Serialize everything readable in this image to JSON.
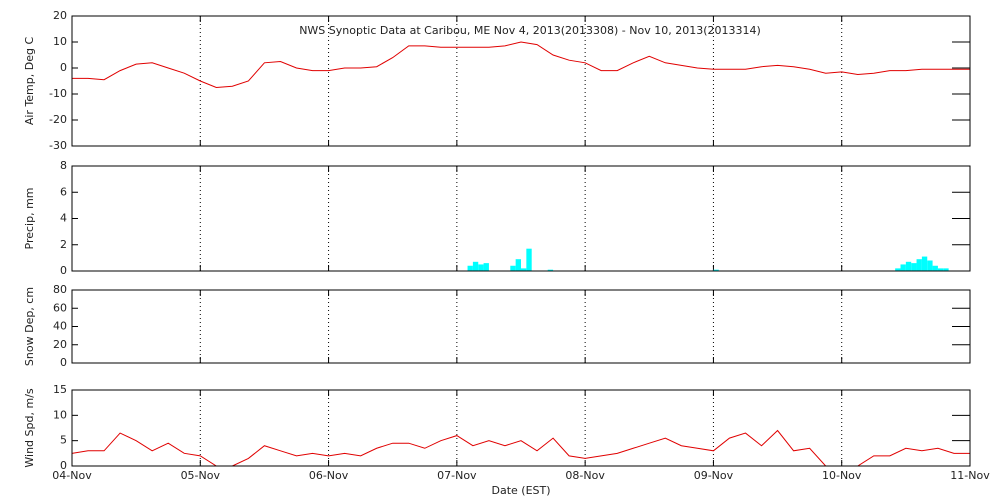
{
  "chart_data": [
    {
      "type": "line",
      "title": "NWS Synoptic Data at Caribou, ME   Nov  4, 2013(2013308) - Nov 10, 2013(2013314)",
      "y_label": "Air Temp, Deg C",
      "color": "#e00000",
      "x": [
        0,
        3,
        6,
        9,
        12,
        15,
        18,
        21,
        24,
        27,
        30,
        33,
        36,
        39,
        42,
        45,
        48,
        51,
        54,
        57,
        60,
        63,
        66,
        69,
        72,
        75,
        78,
        81,
        84,
        87,
        90,
        93,
        96,
        99,
        102,
        105,
        108,
        111,
        114,
        117,
        120,
        123,
        126,
        129,
        132,
        135,
        138,
        141,
        144,
        147,
        150,
        153,
        156,
        159,
        162,
        165,
        168
      ],
      "values": [
        -4,
        -4,
        -4.5,
        -1,
        1.5,
        2,
        0,
        -2,
        -5,
        -7.5,
        -7,
        -5,
        2,
        2.5,
        0,
        -1,
        -1,
        0,
        0,
        0.5,
        4,
        8.5,
        8.5,
        8,
        8,
        8,
        8,
        8.5,
        10,
        9,
        5,
        3,
        2,
        -1,
        -1,
        2,
        4.5,
        2,
        1,
        0,
        -0.5,
        -0.5,
        -0.5,
        0.5,
        1,
        0.5,
        -0.5,
        -2,
        -1.5,
        -2.5,
        -2,
        -1,
        -1,
        -0.5,
        -0.5,
        -0.5,
        -0.5
      ],
      "xlim": [
        0,
        168
      ],
      "xticks": [
        0,
        24,
        48,
        72,
        96,
        120,
        144,
        168
      ],
      "ylim": [
        -30,
        20
      ],
      "yticks": [
        -30,
        -20,
        -10,
        0,
        10,
        20
      ],
      "grid": true
    },
    {
      "type": "bar",
      "y_label": "Precip, mm",
      "color": "#00ffff",
      "x": [
        74,
        75,
        76,
        77,
        82,
        83,
        84,
        85,
        89,
        120,
        154,
        155,
        156,
        157,
        158,
        159,
        160,
        161,
        162,
        163
      ],
      "values": [
        0.4,
        0.7,
        0.5,
        0.6,
        0.4,
        0.9,
        0.2,
        1.7,
        0.1,
        0.1,
        0.2,
        0.5,
        0.7,
        0.6,
        0.9,
        1.1,
        0.8,
        0.4,
        0.2,
        0.2
      ],
      "xlim": [
        0,
        168
      ],
      "xticks": [
        0,
        24,
        48,
        72,
        96,
        120,
        144,
        168
      ],
      "ylim": [
        0,
        8
      ],
      "yticks": [
        0,
        2,
        4,
        6,
        8
      ],
      "grid": true
    },
    {
      "type": "line",
      "y_label": "Snow Dep, cm",
      "color": "#e00000",
      "xlim": [
        0,
        168
      ],
      "xticks": [
        0,
        24,
        48,
        72,
        96,
        120,
        144,
        168
      ],
      "ylim": [
        0,
        80
      ],
      "yticks": [
        0,
        20,
        40,
        60,
        80
      ],
      "grid": true
    },
    {
      "type": "line",
      "y_label": "Wind Spd, m/s",
      "x_label": "Date (EST)",
      "color": "#e00000",
      "x": [
        0,
        3,
        6,
        9,
        12,
        15,
        18,
        21,
        24,
        27,
        30,
        33,
        36,
        39,
        42,
        45,
        48,
        51,
        54,
        57,
        60,
        63,
        66,
        69,
        72,
        75,
        78,
        81,
        84,
        87,
        90,
        93,
        96,
        99,
        102,
        105,
        108,
        111,
        114,
        117,
        120,
        123,
        126,
        129,
        132,
        135,
        138,
        141,
        144,
        147,
        150,
        153,
        156,
        159,
        162,
        165,
        168
      ],
      "values": [
        2.5,
        3,
        3,
        6.5,
        5,
        3,
        4.5,
        2.5,
        2,
        0,
        0,
        1.5,
        4,
        3,
        2,
        2.5,
        2,
        2.5,
        2,
        3.5,
        4.5,
        4.5,
        3.5,
        5,
        6,
        4,
        5,
        4,
        5,
        3,
        5.5,
        2,
        1.5,
        2,
        2.5,
        3.5,
        4.5,
        5.5,
        4,
        3.5,
        3,
        5.5,
        6.5,
        4,
        7,
        3,
        3.5,
        0,
        0,
        0,
        2,
        2,
        3.5,
        3,
        3.5,
        2.5,
        2.5
      ],
      "xlim": [
        0,
        168
      ],
      "xticks": [
        {
          "value": 0,
          "label": "04-Nov"
        },
        {
          "value": 24,
          "label": "05-Nov"
        },
        {
          "value": 48,
          "label": "06-Nov"
        },
        {
          "value": 72,
          "label": "07-Nov"
        },
        {
          "value": 96,
          "label": "08-Nov"
        },
        {
          "value": 120,
          "label": "09-Nov"
        },
        {
          "value": 144,
          "label": "10-Nov"
        },
        {
          "value": 168,
          "label": "11-Nov"
        }
      ],
      "ylim": [
        0,
        15
      ],
      "yticks": [
        0,
        5,
        10,
        15
      ],
      "grid": true
    }
  ]
}
